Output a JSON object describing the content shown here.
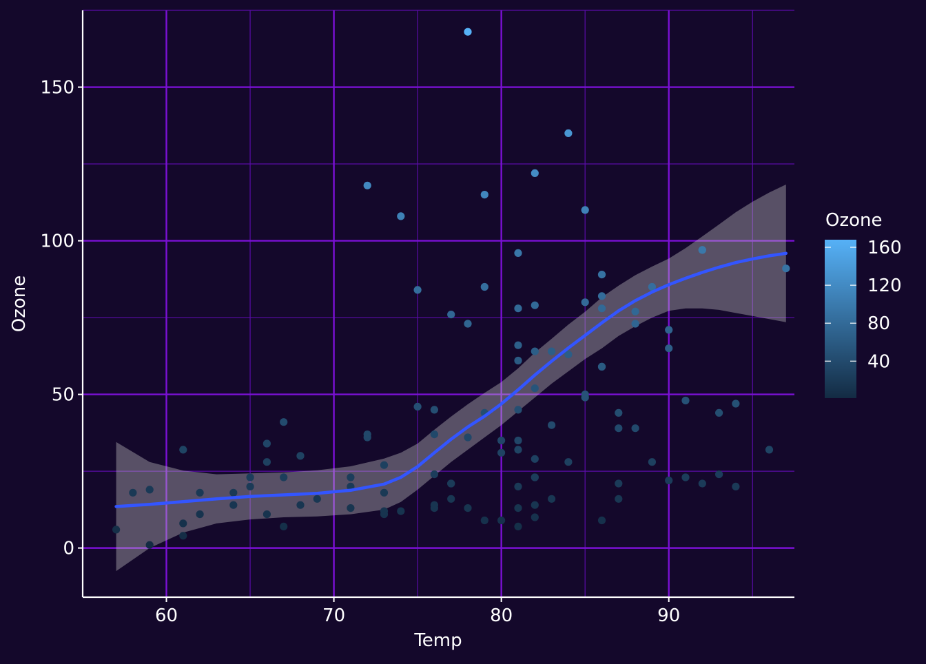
{
  "colors": {
    "background": "#14082b",
    "grid_major": "#7a10d4",
    "grid_minor": "#5a0ca8",
    "axis_line": "#ffffff",
    "text": "#ffffff",
    "smooth_line": "#3355ff",
    "ribbon": "#c8c8c8",
    "gradient_low": "#132b43",
    "gradient_high": "#56b1f7"
  },
  "chart_data": {
    "type": "scatter",
    "title": "",
    "xlabel": "Temp",
    "ylabel": "Ozone",
    "xlim": [
      55,
      97.5
    ],
    "ylim": [
      -16,
      175
    ],
    "x_ticks": [
      60,
      70,
      80,
      90
    ],
    "y_ticks": [
      0,
      50,
      100,
      150
    ],
    "x_tick_labels": [
      "60",
      "70",
      "80",
      "90"
    ],
    "y_tick_labels": [
      "0",
      "50",
      "100",
      "150"
    ],
    "grid": true,
    "legend": {
      "title": "Ozone",
      "type": "colorbar",
      "placement": "right",
      "range": [
        1,
        168
      ],
      "ticks": [
        40,
        80,
        120,
        160
      ],
      "tick_labels": [
        "40",
        "80",
        "120",
        "160"
      ]
    },
    "points": [
      [
        67,
        41
      ],
      [
        72,
        36
      ],
      [
        74,
        12
      ],
      [
        62,
        18
      ],
      [
        66,
        28
      ],
      [
        65,
        23
      ],
      [
        59,
        19
      ],
      [
        61,
        8
      ],
      [
        69,
        16
      ],
      [
        66,
        11
      ],
      [
        68,
        14
      ],
      [
        58,
        18
      ],
      [
        64,
        14
      ],
      [
        66,
        34
      ],
      [
        57,
        6
      ],
      [
        68,
        30
      ],
      [
        62,
        11
      ],
      [
        59,
        1
      ],
      [
        73,
        11
      ],
      [
        61,
        4
      ],
      [
        61,
        32
      ],
      [
        67,
        23
      ],
      [
        81,
        45
      ],
      [
        79,
        115
      ],
      [
        76,
        37
      ],
      [
        82,
        29
      ],
      [
        90,
        71
      ],
      [
        87,
        39
      ],
      [
        82,
        23
      ],
      [
        77,
        21
      ],
      [
        72,
        37
      ],
      [
        65,
        20
      ],
      [
        73,
        12
      ],
      [
        76,
        13
      ],
      [
        84,
        135
      ],
      [
        85,
        49
      ],
      [
        81,
        32
      ],
      [
        83,
        64
      ],
      [
        83,
        40
      ],
      [
        88,
        77
      ],
      [
        92,
        97
      ],
      [
        92,
        97
      ],
      [
        89,
        85
      ],
      [
        82,
        10
      ],
      [
        73,
        27
      ],
      [
        81,
        7
      ],
      [
        91,
        48
      ],
      [
        80,
        35
      ],
      [
        81,
        61
      ],
      [
        82,
        79
      ],
      [
        84,
        63
      ],
      [
        87,
        16
      ],
      [
        85,
        80
      ],
      [
        74,
        108
      ],
      [
        81,
        20
      ],
      [
        82,
        52
      ],
      [
        86,
        82
      ],
      [
        85,
        50
      ],
      [
        82,
        64
      ],
      [
        86,
        59
      ],
      [
        88,
        39
      ],
      [
        86,
        9
      ],
      [
        83,
        16
      ],
      [
        81,
        78
      ],
      [
        81,
        35
      ],
      [
        81,
        66
      ],
      [
        82,
        122
      ],
      [
        86,
        89
      ],
      [
        85,
        110
      ],
      [
        87,
        44
      ],
      [
        89,
        28
      ],
      [
        90,
        65
      ],
      [
        90,
        22
      ],
      [
        86,
        59
      ],
      [
        82,
        23
      ],
      [
        80,
        31
      ],
      [
        79,
        44
      ],
      [
        77,
        21
      ],
      [
        79,
        9
      ],
      [
        76,
        45
      ],
      [
        78,
        168
      ],
      [
        78,
        73
      ],
      [
        77,
        76
      ],
      [
        72,
        118
      ],
      [
        75,
        84
      ],
      [
        79,
        85
      ],
      [
        81,
        96
      ],
      [
        86,
        78
      ],
      [
        88,
        73
      ],
      [
        97,
        91
      ],
      [
        94,
        47
      ],
      [
        96,
        32
      ],
      [
        94,
        20
      ],
      [
        91,
        23
      ],
      [
        92,
        21
      ],
      [
        93,
        24
      ],
      [
        93,
        44
      ],
      [
        87,
        21
      ],
      [
        84,
        28
      ],
      [
        80,
        9
      ],
      [
        78,
        13
      ],
      [
        75,
        46
      ],
      [
        73,
        18
      ],
      [
        81,
        13
      ],
      [
        76,
        24
      ],
      [
        77,
        16
      ],
      [
        71,
        13
      ],
      [
        71,
        23
      ],
      [
        78,
        36
      ],
      [
        67,
        7
      ],
      [
        76,
        14
      ],
      [
        68,
        30
      ],
      [
        82,
        14
      ],
      [
        64,
        18
      ],
      [
        71,
        20
      ]
    ],
    "smooth": {
      "method": "loess",
      "x": [
        57,
        59,
        61,
        63,
        65,
        67,
        69,
        71,
        73,
        74,
        75,
        76,
        77,
        78,
        79,
        80,
        81,
        82,
        83,
        84,
        85,
        86,
        87,
        88,
        89,
        90,
        91,
        92,
        93,
        94,
        95,
        96,
        97
      ],
      "y": [
        13.5,
        14.2,
        15.1,
        16.0,
        16.8,
        17.3,
        17.8,
        18.8,
        20.8,
        23,
        26.5,
        31,
        35.4,
        39.4,
        42.9,
        46.9,
        51.5,
        56.3,
        60.8,
        65.1,
        69.2,
        73.3,
        77.2,
        80.5,
        83.3,
        85.7,
        87.8,
        89.7,
        91.4,
        92.9,
        94.1,
        95.1,
        95.9
      ],
      "se_lower": [
        -7.5,
        0,
        5,
        8,
        9.3,
        10,
        10.3,
        11,
        12.5,
        15,
        19,
        23.5,
        28,
        32,
        36,
        40,
        44.5,
        49,
        53.5,
        57.5,
        61.5,
        65,
        69,
        72.2,
        75,
        77.2,
        78,
        78,
        77.5,
        76.5,
        75.5,
        74.5,
        73.5
      ],
      "se_upper": [
        34.5,
        28,
        25.2,
        24,
        24.3,
        24.6,
        25.3,
        26.6,
        29.1,
        31,
        34,
        38.5,
        42.8,
        46.8,
        50.5,
        54,
        58.5,
        63.6,
        68.1,
        72.7,
        76.9,
        81.6,
        85.4,
        88.8,
        91.6,
        94.2,
        97.6,
        101.4,
        105.3,
        109.3,
        112.7,
        115.7,
        118.3
      ]
    }
  }
}
